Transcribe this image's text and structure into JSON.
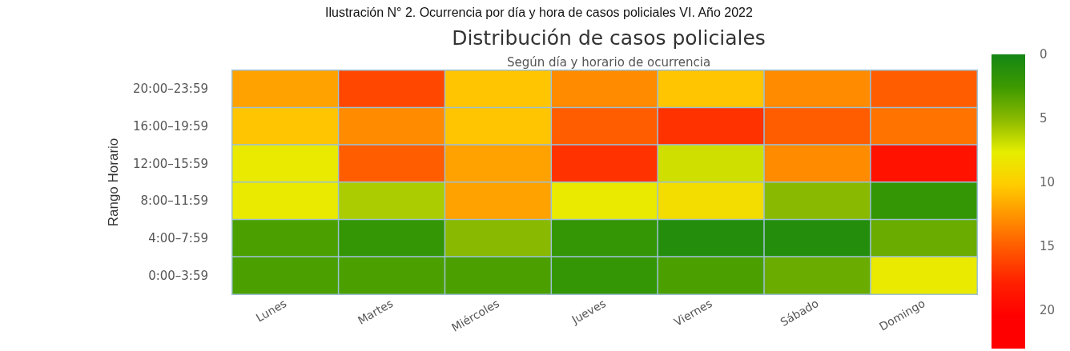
{
  "chart_data": {
    "type": "heatmap",
    "title": "Distribución de casos policiales",
    "subtitle": "Según día y horario de ocurrencia",
    "ylabel": "Rango Horario",
    "annotations": [
      "Ilustración N° 2. Ocurrencia por día y hora de casos policiales VI. Año 2022"
    ],
    "categories": [
      "Lunes",
      "Martes",
      "Miércoles",
      "Jueves",
      "Viernes",
      "Sábado",
      "Domingo"
    ],
    "y_categories": [
      "20:00–23:59",
      "16:00–19:59",
      "12:00–15:59",
      "8:00–11:59",
      "4:00–7:59",
      "0:00–3:59"
    ],
    "cells": [
      [
        12,
        16,
        10.5,
        13,
        10.5,
        13,
        15
      ],
      [
        10.5,
        13,
        10.5,
        15,
        17,
        15,
        14
      ],
      [
        8,
        15,
        12,
        17,
        7,
        13,
        19
      ],
      [
        8,
        6,
        12,
        8,
        9,
        5,
        2
      ],
      [
        3,
        2,
        5,
        2,
        1,
        1,
        4
      ],
      [
        3,
        3,
        3,
        2,
        3,
        4,
        8
      ]
    ],
    "clim": [
      0,
      23
    ],
    "cticks": [
      0,
      5,
      10,
      15,
      20
    ]
  }
}
